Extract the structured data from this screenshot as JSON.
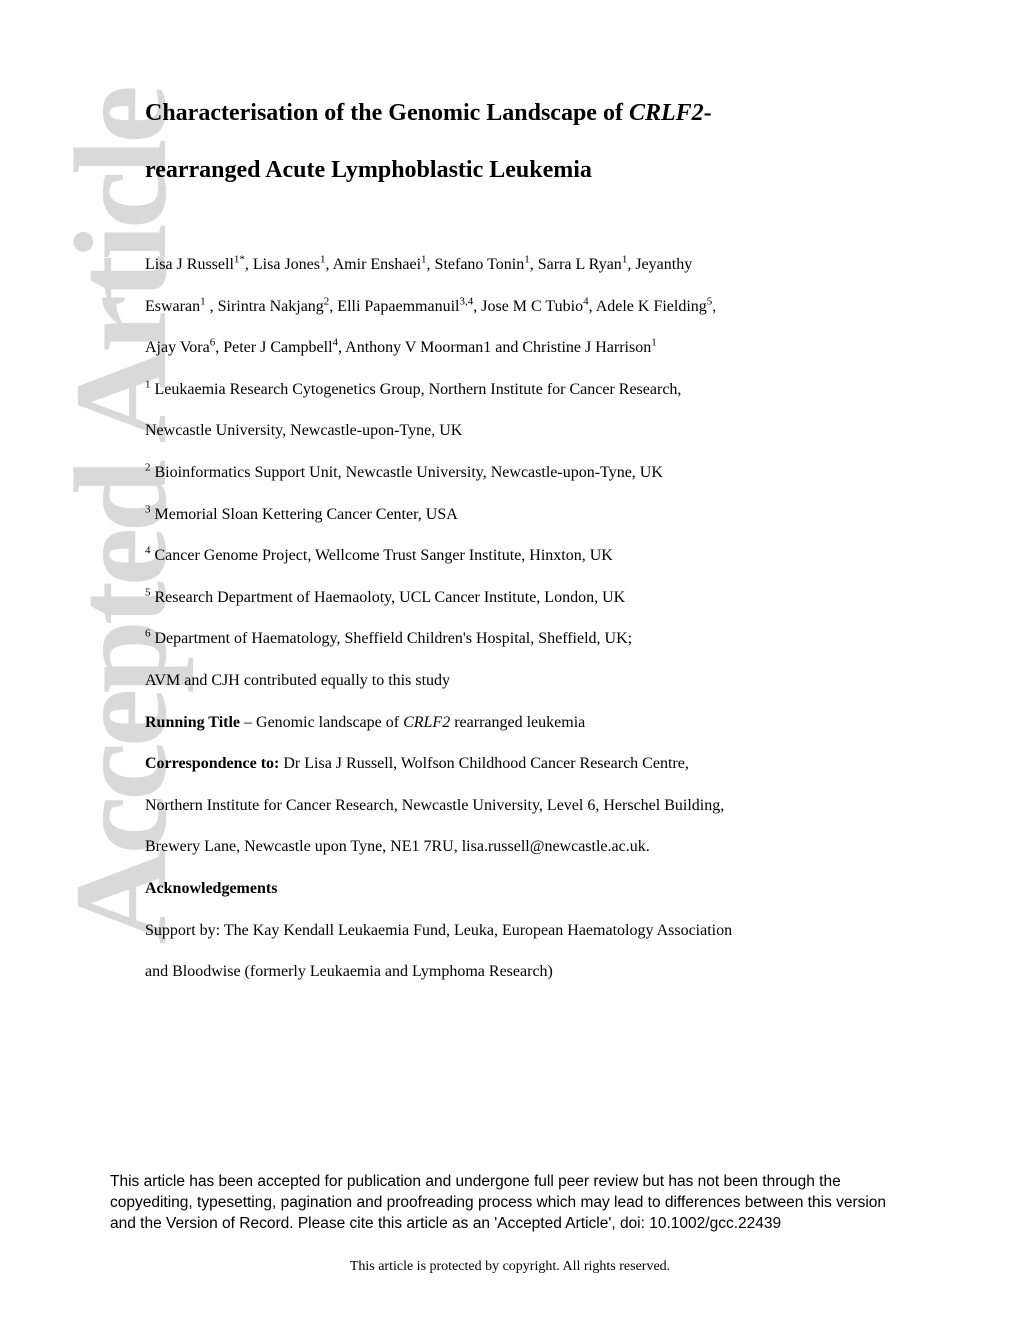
{
  "watermark": "Accepted Article",
  "title_part1": "Characterisation of the Genomic Landscape of ",
  "title_italic": "CRLF2",
  "title_part2": "-",
  "title_line2": "rearranged Acute Lymphoblastic Leukemia",
  "authors_line1_a": "Lisa J Russell",
  "authors_line1_a_sup": "1*",
  "authors_line1_b": ", Lisa Jones",
  "authors_line1_b_sup": "1",
  "authors_line1_c": ", Amir Enshaei",
  "authors_line1_c_sup": "1",
  "authors_line1_d": ", Stefano Tonin",
  "authors_line1_d_sup": "1",
  "authors_line1_e": ", Sarra L Ryan",
  "authors_line1_e_sup": "1",
  "authors_line1_f": ", Jeyanthy",
  "authors_line2_a": "Eswaran",
  "authors_line2_a_sup": "1",
  "authors_line2_b": " , Sirintra Nakjang",
  "authors_line2_b_sup": "2",
  "authors_line2_c": ", Elli Papaemmanuil",
  "authors_line2_c_sup": "3,4",
  "authors_line2_d": ", Jose M C Tubio",
  "authors_line2_d_sup": "4",
  "authors_line2_e": ", Adele K Fielding",
  "authors_line2_e_sup": "5",
  "authors_line2_f": ",",
  "authors_line3_a": "Ajay Vora",
  "authors_line3_a_sup": "6",
  "authors_line3_b": ", Peter J Campbell",
  "authors_line3_b_sup": "4",
  "authors_line3_c": ", Anthony V Moorman1 and Christine J Harrison",
  "authors_line3_c_sup": "1",
  "affil1_sup": "1",
  "affil1": " Leukaemia Research Cytogenetics Group, Northern Institute for Cancer Research,",
  "affil1b": "Newcastle University, Newcastle-upon-Tyne, UK",
  "affil2_sup": "2",
  "affil2": " Bioinformatics Support Unit, Newcastle University, Newcastle-upon-Tyne, UK",
  "affil3_sup": "3",
  "affil3": " Memorial Sloan Kettering Cancer Center, USA",
  "affil4_sup": "4",
  "affil4": " Cancer Genome Project, Wellcome Trust Sanger Institute, Hinxton, UK",
  "affil5_sup": "5",
  "affil5": " Research Department of Haemaoloty, UCL Cancer Institute, London, UK",
  "affil6_sup": "6",
  "affil6": " Department of Haematology, Sheffield Children's Hospital, Sheffield, UK;",
  "contrib": "AVM and CJH contributed equally to this study",
  "running_title_label": "Running Title",
  "running_title_text1": " – Genomic landscape of ",
  "running_title_italic": "CRLF2",
  "running_title_text2": " rearranged leukemia",
  "correspondence_label": "Correspondence to:",
  "correspondence_text1": " Dr Lisa J Russell, Wolfson Childhood Cancer Research Centre,",
  "correspondence_text2": "Northern Institute for Cancer Research, Newcastle University, Level 6, Herschel Building,",
  "correspondence_text3": "Brewery Lane, Newcastle upon Tyne, NE1 7RU, lisa.russell@newcastle.ac.uk.",
  "ack_label": "Acknowledgements",
  "ack_text1": "Support by: The Kay Kendall Leukaemia Fund, Leuka, European Haematology Association",
  "ack_text2": "and Bloodwise (formerly Leukaemia and Lymphoma Research)",
  "disclaimer": "This article has been accepted for publication and undergone full peer review but has not been through the copyediting, typesetting, pagination and proofreading process which may lead to differences between this version and the Version of Record. Please cite this article as an 'Accepted Article', doi: 10.1002/gcc.22439",
  "copyright": "This article is protected by copyright. All rights reserved."
}
